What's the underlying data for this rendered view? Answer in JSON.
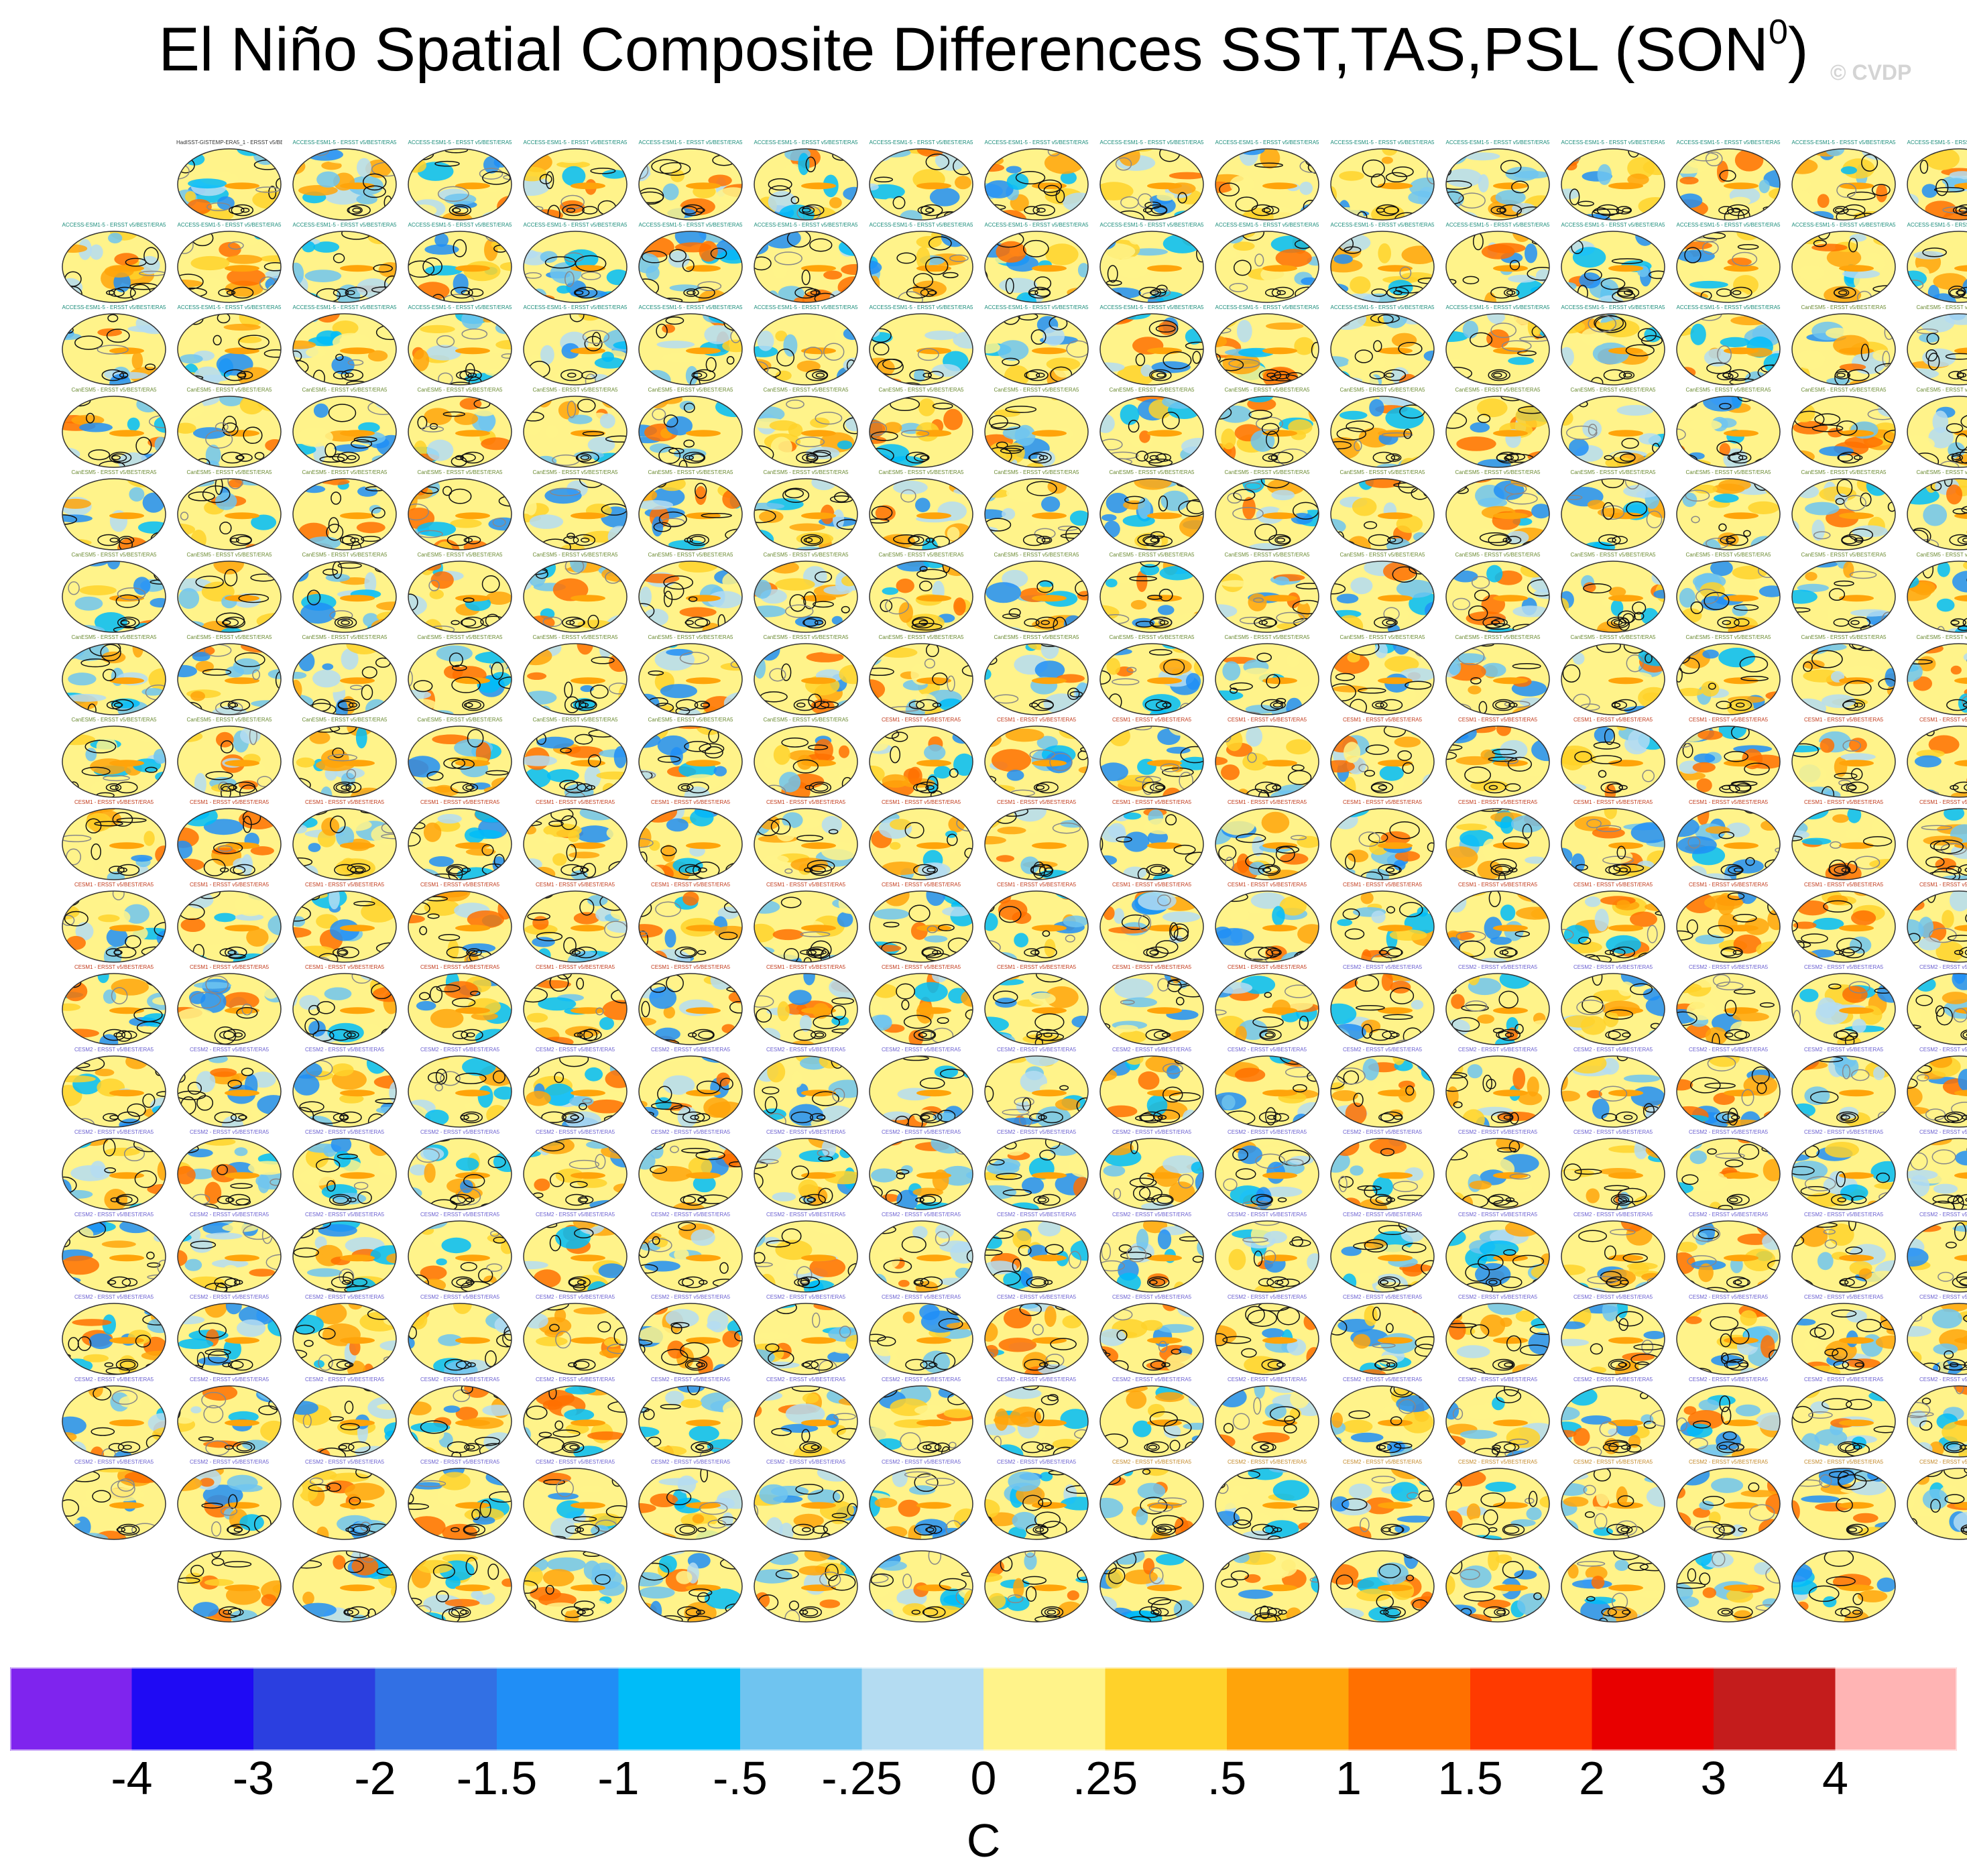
{
  "title": {
    "main": "El Niño Spatial Composite Differences SST,TAS,PSL (SON",
    "superscript": "0",
    "close": ")"
  },
  "watermark": "© CVDP",
  "chart_data": {
    "type": "heatmap",
    "description_label": "composite difference maps, one per model member",
    "first_panel_label": "HadISST-GISTEMP-ERA5_1 - ERSST v5/BEST/ERA5",
    "panel_label_groups": [
      {
        "text": "ACCESS-ESM1-5 - ERSST v5/BEST/ERA5",
        "color": "#1a8c7a"
      },
      {
        "text": "CanESM5 - ERSST v5/BEST/ERA5",
        "color": "#6a8a30"
      },
      {
        "text": "CESM1 - ERSST v5/BEST/ERA5",
        "color": "#c23b1c"
      },
      {
        "text": "CESM2 - ERSST v5/BEST/ERA5",
        "color": "#6a5fd0"
      },
      {
        "text": "CESM2 - ERSST v5/BEST/ERA5",
        "color": "#c48a2a"
      }
    ],
    "grid_rows": [
      16,
      17,
      17,
      17,
      17,
      17,
      17,
      17,
      17,
      17,
      17,
      17,
      17,
      17,
      17,
      17,
      17,
      15
    ],
    "colorbar": {
      "colors": [
        "#7f24ee",
        "#1f0af4",
        "#2b3fe0",
        "#3270e4",
        "#208ef6",
        "#00bcf8",
        "#6fc4f0",
        "#b4dcf2",
        "#fff38a",
        "#ffd22a",
        "#ffa40a",
        "#ff7000",
        "#ff3a00",
        "#e80000",
        "#c41c1c",
        "#ffb4b4"
      ],
      "ticks": [
        "-4",
        "-3",
        "-2",
        "-1.5",
        "-1",
        "-.5",
        "-.25",
        "0",
        ".25",
        ".5",
        "1",
        "1.5",
        "2",
        "3",
        "4"
      ],
      "units": "C"
    }
  }
}
